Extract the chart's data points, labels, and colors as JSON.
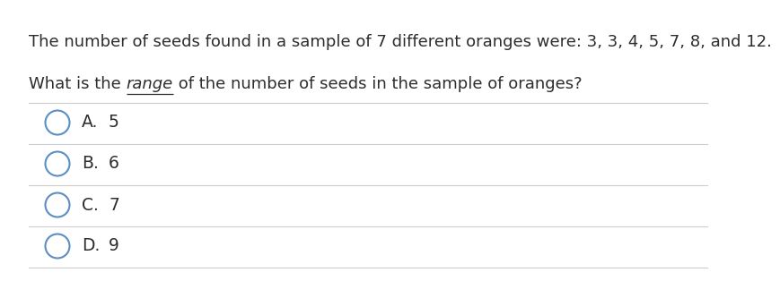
{
  "line1": "The number of seeds found in a sample of 7 different oranges were: 3, 3, 4, 5, 7, 8, and 12.",
  "line2_prefix": "What is the ",
  "line2_italic_underline": "range",
  "line2_suffix": " of the number of seeds in the sample of oranges?",
  "options": [
    {
      "letter": "A.",
      "value": "5"
    },
    {
      "letter": "B.",
      "value": "6"
    },
    {
      "letter": "C.",
      "value": "7"
    },
    {
      "letter": "D.",
      "value": "9"
    }
  ],
  "bg_color": "#ffffff",
  "text_color": "#2d2d2d",
  "border_color": "#cccccc",
  "circle_color": "#5b8ec4",
  "font_size_main": 13.0,
  "font_size_options": 13.5,
  "fig_width": 8.0,
  "fig_height": 2.94
}
